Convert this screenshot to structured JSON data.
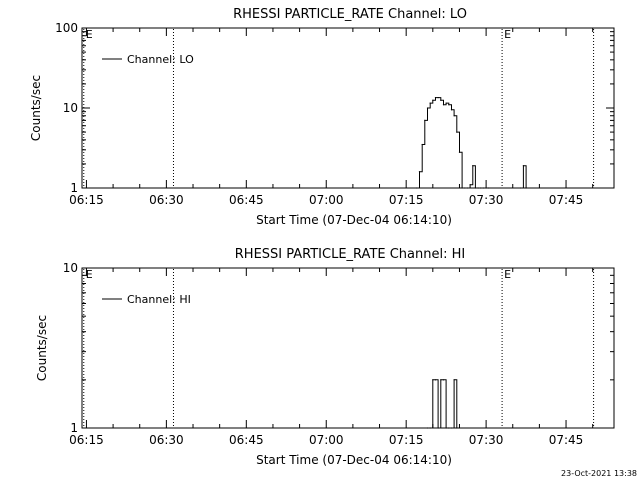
{
  "chart_data": [
    {
      "type": "line",
      "title": "RHESSI PARTICLE_RATE Channel: LO",
      "xlabel": "Start Time (07-Dec-04 06:14:10)",
      "ylabel": "Counts/sec",
      "y_scale": "log",
      "xlim": [
        "06:14:10",
        "07:54:00"
      ],
      "ylim": [
        1,
        100
      ],
      "x_ticks": [
        "06:15",
        "06:30",
        "06:45",
        "07:00",
        "07:15",
        "07:30",
        "07:45"
      ],
      "y_ticks": [
        "1",
        "10",
        "100"
      ],
      "legend": {
        "placement": "top-left",
        "entries": [
          "Channel: LO"
        ]
      },
      "event_markers": [
        {
          "time": "06:14:30",
          "label": "E"
        },
        {
          "time": "06:31:20",
          "label": ""
        },
        {
          "time": "07:33:00",
          "label": "E"
        },
        {
          "time": "07:50:10",
          "label": ""
        }
      ],
      "series": [
        {
          "name": "Channel: LO",
          "x": [
            "07:17:00",
            "07:17:30",
            "07:18:00",
            "07:18:30",
            "07:19:00",
            "07:19:30",
            "07:20:00",
            "07:20:30",
            "07:21:00",
            "07:21:30",
            "07:22:00",
            "07:22:30",
            "07:23:00",
            "07:23:30",
            "07:24:00",
            "07:24:30",
            "07:25:00",
            "07:25:30",
            "07:26:00",
            "07:26:30",
            "07:27:00",
            "07:27:30",
            "07:28:00",
            "07:28:30",
            "07:29:00",
            "07:29:30",
            "07:30:00",
            "07:30:30",
            "07:36:30",
            "07:37:00",
            "07:37:30"
          ],
          "y": [
            1.0,
            1.6,
            3.5,
            7.0,
            10.0,
            11.5,
            12.5,
            13.5,
            13.5,
            12.5,
            11.0,
            11.5,
            11.0,
            9.5,
            8.0,
            5.0,
            2.8,
            1.0,
            1.0,
            1.0,
            1.1,
            1.9,
            1.0,
            1.0,
            1.0,
            1.0,
            1.0,
            1.0,
            1.0,
            1.9,
            1.0
          ]
        }
      ]
    },
    {
      "type": "line",
      "title": "RHESSI PARTICLE_RATE Channel: HI",
      "xlabel": "Start Time (07-Dec-04 06:14:10)",
      "ylabel": "Counts/sec",
      "y_scale": "log",
      "xlim": [
        "06:14:10",
        "07:54:00"
      ],
      "ylim": [
        1,
        10
      ],
      "x_ticks": [
        "06:15",
        "06:30",
        "06:45",
        "07:00",
        "07:15",
        "07:30",
        "07:45"
      ],
      "y_ticks": [
        "1",
        "10"
      ],
      "legend": {
        "placement": "top-left",
        "entries": [
          "Channel: HI"
        ]
      },
      "event_markers": [
        {
          "time": "06:14:30",
          "label": "E"
        },
        {
          "time": "06:31:20",
          "label": ""
        },
        {
          "time": "07:33:00",
          "label": "E"
        },
        {
          "time": "07:50:10",
          "label": ""
        }
      ],
      "series": [
        {
          "name": "Channel: HI",
          "x": [
            "07:19:00",
            "07:19:30",
            "07:20:00",
            "07:20:30",
            "07:21:00",
            "07:21:30",
            "07:22:00",
            "07:22:30",
            "07:23:00",
            "07:23:30",
            "07:24:00",
            "07:24:30"
          ],
          "y": [
            1.0,
            1.0,
            2.0,
            2.0,
            1.0,
            2.0,
            2.0,
            1.0,
            1.0,
            1.0,
            2.0,
            1.0
          ]
        }
      ]
    }
  ],
  "footer": {
    "timestamp": "23-Oct-2021 13:38"
  }
}
